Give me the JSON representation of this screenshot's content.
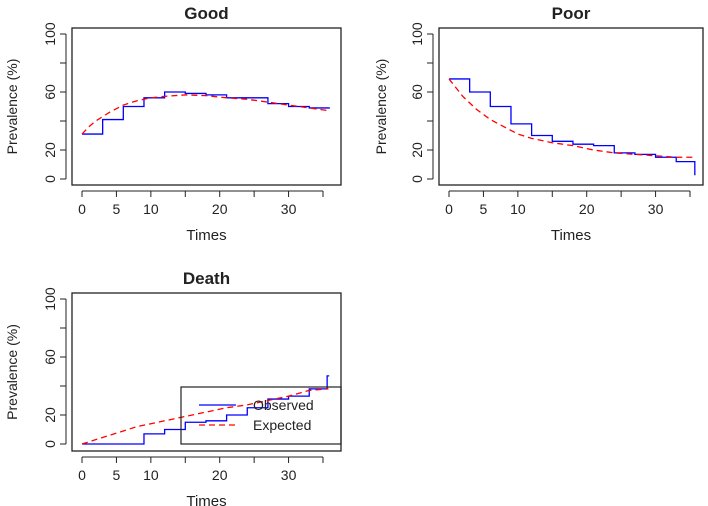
{
  "chart_data": [
    {
      "type": "line",
      "title": "Good",
      "xlabel": "Times",
      "ylabel": "Prevalence (%)",
      "xlim": [
        0,
        36
      ],
      "ylim": [
        0,
        100
      ],
      "xticks": [
        0,
        5,
        10,
        15,
        20,
        25,
        30,
        35
      ],
      "xtick_labels": [
        "0",
        "5",
        "10",
        "",
        "20",
        "",
        "30",
        ""
      ],
      "yticks": [
        0,
        20,
        40,
        60,
        80,
        100
      ],
      "ytick_labels": [
        "0",
        "20",
        "",
        "60",
        "",
        "100"
      ],
      "series": [
        {
          "name": "Observed",
          "color": "#0000ff",
          "style": "step",
          "x": [
            0,
            3,
            6,
            9,
            12,
            15,
            18,
            21,
            24,
            27,
            30,
            33,
            36
          ],
          "y": [
            31,
            41,
            50,
            56,
            60,
            59,
            58,
            56,
            56,
            52,
            50,
            49,
            49
          ]
        },
        {
          "name": "Expected",
          "color": "#ff0000",
          "style": "dashed",
          "x": [
            0,
            1,
            2,
            4,
            6,
            8,
            10,
            12,
            15,
            18,
            21,
            24,
            27,
            30,
            33,
            36
          ],
          "y": [
            31,
            36,
            40,
            46,
            51,
            54,
            56,
            57,
            58,
            57.5,
            56,
            55,
            53,
            51,
            49,
            47
          ]
        }
      ]
    },
    {
      "type": "line",
      "title": "Poor",
      "xlabel": "Times",
      "ylabel": "Prevalence (%)",
      "xlim": [
        0,
        36
      ],
      "ylim": [
        0,
        100
      ],
      "xticks": [
        0,
        5,
        10,
        15,
        20,
        25,
        30,
        35
      ],
      "xtick_labels": [
        "0",
        "5",
        "10",
        "",
        "20",
        "",
        "30",
        ""
      ],
      "yticks": [
        0,
        20,
        40,
        60,
        80,
        100
      ],
      "ytick_labels": [
        "0",
        "20",
        "",
        "60",
        "",
        "100"
      ],
      "series": [
        {
          "name": "Observed",
          "color": "#0000ff",
          "style": "step",
          "x": [
            0,
            3,
            6,
            9,
            12,
            15,
            18,
            21,
            24,
            27,
            30,
            33,
            35.7,
            35.8
          ],
          "y": [
            69,
            60,
            50,
            38,
            30,
            26,
            24,
            23,
            18,
            17,
            15,
            12,
            3,
            3
          ]
        },
        {
          "name": "Expected",
          "color": "#ff0000",
          "style": "dashed",
          "x": [
            0,
            1,
            2,
            4,
            6,
            8,
            10,
            12,
            15,
            18,
            21,
            24,
            27,
            30,
            33,
            35.8
          ],
          "y": [
            69,
            63,
            57,
            48,
            41,
            36,
            31,
            28,
            25,
            23,
            20,
            18,
            17,
            16,
            15,
            15
          ]
        }
      ]
    },
    {
      "type": "line",
      "title": "Death",
      "xlabel": "Times",
      "ylabel": "Prevalence (%)",
      "xlim": [
        0,
        36
      ],
      "ylim": [
        0,
        100
      ],
      "xticks": [
        0,
        5,
        10,
        15,
        20,
        25,
        30,
        35
      ],
      "xtick_labels": [
        "0",
        "5",
        "10",
        "",
        "20",
        "",
        "30",
        ""
      ],
      "yticks": [
        0,
        20,
        40,
        60,
        80,
        100
      ],
      "ytick_labels": [
        "0",
        "20",
        "",
        "60",
        "",
        "100"
      ],
      "legend": {
        "position": "bottom-right",
        "entries": [
          "Observed",
          "Expected"
        ]
      },
      "series": [
        {
          "name": "Observed",
          "color": "#0000ff",
          "style": "step",
          "x": [
            0,
            9,
            12,
            15,
            18,
            21,
            24,
            27,
            30,
            33,
            35.6,
            35.9
          ],
          "y": [
            0,
            7,
            10,
            15,
            16,
            20,
            25,
            31,
            33,
            38,
            47,
            47
          ]
        },
        {
          "name": "Expected",
          "color": "#ff0000",
          "style": "dashed",
          "x": [
            0,
            2,
            4,
            6,
            8,
            10,
            12,
            15,
            18,
            21,
            24,
            27,
            30,
            33,
            35.8
          ],
          "y": [
            0,
            3,
            6,
            9,
            12,
            14,
            16,
            19,
            22,
            25,
            27,
            30,
            33,
            37,
            38
          ]
        }
      ]
    }
  ]
}
